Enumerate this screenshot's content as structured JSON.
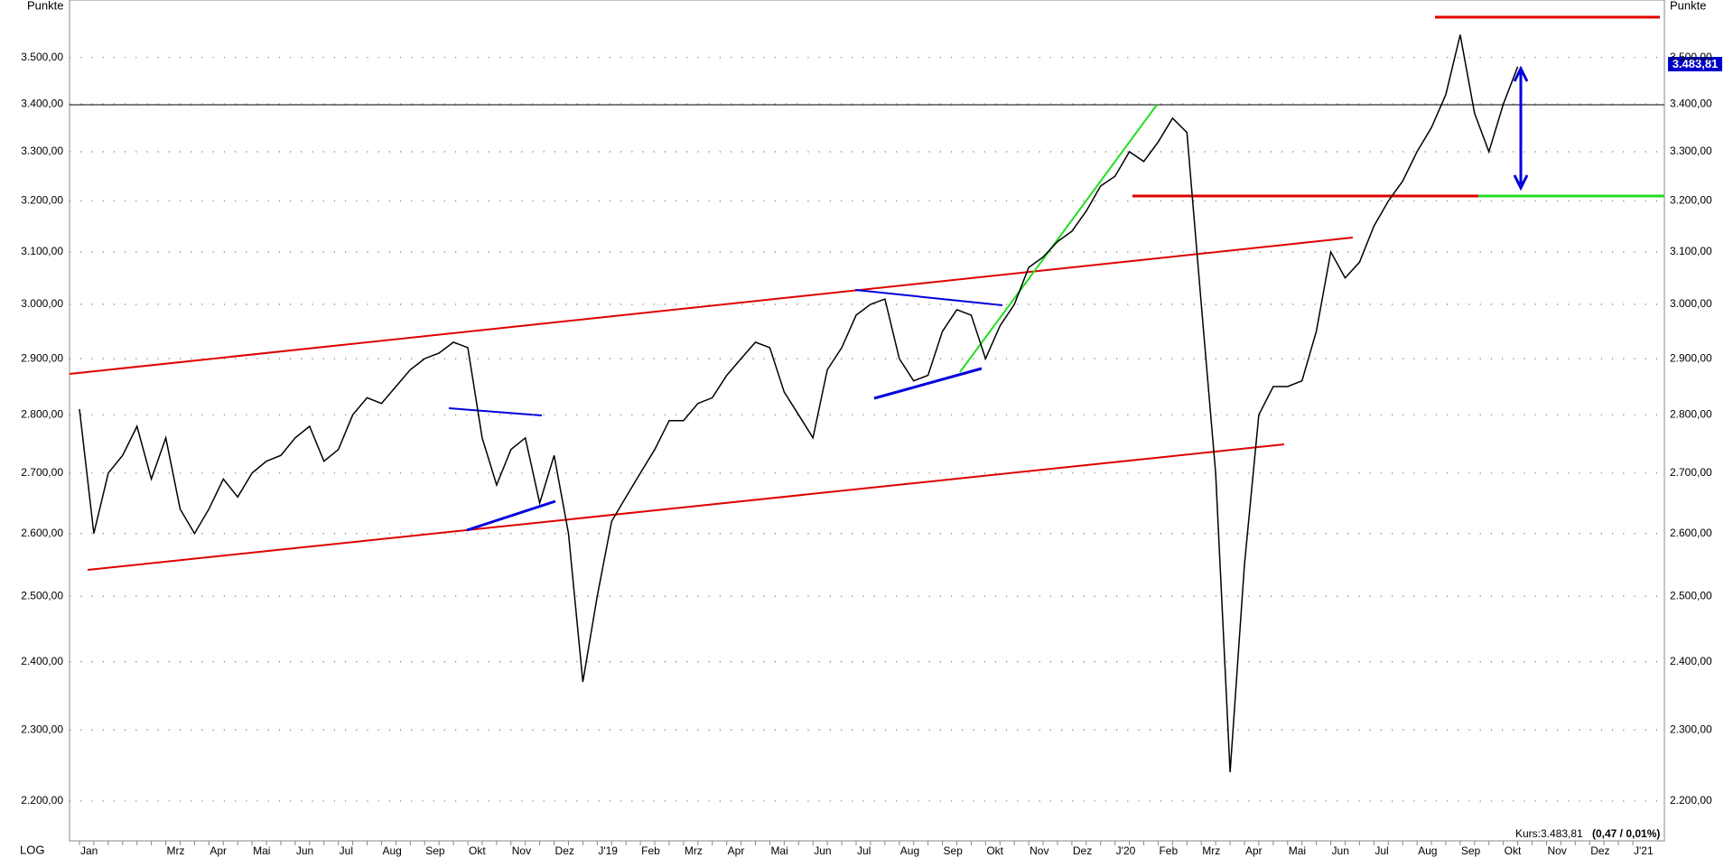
{
  "chart_data": {
    "type": "line",
    "y_axis_label": "Punkte",
    "scale_label": "LOG",
    "log_scale": true,
    "grid": true,
    "color": "#000000",
    "ylim": [
      2146,
      3628
    ],
    "yticks": [
      {
        "value": 2200,
        "label": "2.200,00"
      },
      {
        "value": 2300,
        "label": "2.300,00"
      },
      {
        "value": 2400,
        "label": "2.400,00"
      },
      {
        "value": 2500,
        "label": "2.500,00"
      },
      {
        "value": 2600,
        "label": "2.600,00"
      },
      {
        "value": 2700,
        "label": "2.700,00"
      },
      {
        "value": 2800,
        "label": "2.800,00"
      },
      {
        "value": 2900,
        "label": "2.900,00"
      },
      {
        "value": 3000,
        "label": "3.000,00"
      },
      {
        "value": 3100,
        "label": "3.100,00"
      },
      {
        "value": 3200,
        "label": "3.200,00"
      },
      {
        "value": 3300,
        "label": "3.300,00"
      },
      {
        "value": 3400,
        "label": "3.400,00"
      },
      {
        "value": 3500,
        "label": "3.500,00"
      }
    ],
    "last_price": {
      "value": 3483.81,
      "label": "3.483,81"
    },
    "kurs_label": "Kurs:3.483,81",
    "change_label": "(0,47 / 0,01%)",
    "categories": [
      "Jan",
      null,
      null,
      null,
      null,
      null,
      "Mrz",
      null,
      null,
      "Apr",
      null,
      null,
      "Mai",
      null,
      null,
      "Jun",
      null,
      null,
      "Jul",
      null,
      null,
      "Aug",
      null,
      null,
      "Sep",
      null,
      null,
      "Okt",
      null,
      null,
      "Nov",
      null,
      null,
      "Dez",
      null,
      null,
      "J'19",
      null,
      null,
      "Feb",
      null,
      null,
      "Mrz",
      null,
      null,
      "Apr",
      null,
      null,
      "Mai",
      null,
      null,
      "Jun",
      null,
      null,
      "Jul",
      null,
      null,
      "Aug",
      null,
      null,
      "Sep",
      null,
      null,
      "Okt",
      null,
      null,
      "Nov",
      null,
      null,
      "Dez",
      null,
      null,
      "J'20",
      null,
      null,
      "Feb",
      null,
      null,
      "Mrz",
      null,
      null,
      "Apr",
      null,
      null,
      "Mai",
      null,
      null,
      "Jun",
      null,
      null,
      "Jul",
      null,
      null,
      "Aug",
      null,
      null,
      "Sep",
      null,
      null,
      "Okt",
      null,
      null,
      "Nov",
      null,
      null,
      "Dez",
      null,
      null,
      "J'21"
    ],
    "values": [
      2810,
      2600,
      2700,
      2730,
      2780,
      2690,
      2760,
      2640,
      2600,
      2640,
      2690,
      2660,
      2700,
      2720,
      2730,
      2760,
      2780,
      2720,
      2740,
      2800,
      2830,
      2820,
      2850,
      2880,
      2900,
      2910,
      2930,
      2920,
      2760,
      2680,
      2740,
      2760,
      2650,
      2730,
      2600,
      2370,
      2500,
      2620,
      2660,
      2700,
      2740,
      2790,
      2790,
      2820,
      2830,
      2870,
      2900,
      2930,
      2920,
      2840,
      2800,
      2760,
      2880,
      2920,
      2980,
      3000,
      3010,
      2900,
      2860,
      2870,
      2950,
      2990,
      2980,
      2900,
      2960,
      3000,
      3070,
      3090,
      3120,
      3140,
      3180,
      3230,
      3250,
      3300,
      3280,
      3320,
      3370,
      3340,
      3000,
      2700,
      2240,
      2550,
      2800,
      2850,
      2850,
      2860,
      2950,
      3100,
      3050,
      3080,
      3150,
      3200,
      3240,
      3300,
      3350,
      3420,
      3550,
      3380,
      3300,
      3400,
      3480,
      null,
      null,
      null,
      null,
      null,
      null,
      null,
      null
    ]
  }
}
